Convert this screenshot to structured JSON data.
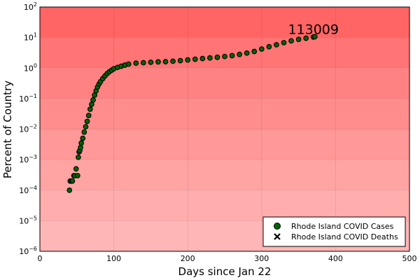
{
  "chart_data": {
    "type": "scatter",
    "title": "",
    "xlabel": "Days since Jan 22",
    "ylabel": "Percent of Country",
    "xlim": [
      0,
      500
    ],
    "ylim_exponent": [
      -6,
      2
    ],
    "yscale": "log10",
    "x_ticks": [
      0,
      100,
      200,
      300,
      400,
      500
    ],
    "y_ticks": [
      "-6",
      "-5",
      "-4",
      "-3",
      "-2",
      "-1",
      "0",
      "1",
      "2"
    ],
    "grid": true,
    "legend_position": "bottom-right",
    "background_colors": [
      "#ffb6b6",
      "#ffadad",
      "#ffa3a3",
      "#ff9898",
      "#ff8d8d",
      "#ff8282",
      "#ff7474",
      "#ff6565"
    ],
    "annotation": {
      "text": "113009",
      "x": 370,
      "y": 19
    },
    "series": [
      {
        "name": "Rhode Island COVID Cases",
        "marker": "circle",
        "color": "#006400",
        "x": [
          40,
          41,
          43,
          44,
          46,
          47,
          49,
          51,
          52,
          53,
          54,
          55,
          56,
          58,
          60,
          62,
          64,
          66,
          68,
          70,
          72,
          74,
          76,
          78,
          80,
          82,
          85,
          88,
          91,
          94,
          97,
          100,
          105,
          110,
          115,
          120,
          130,
          140,
          150,
          160,
          170,
          180,
          190,
          200,
          210,
          220,
          230,
          240,
          250,
          260,
          270,
          280,
          290,
          300,
          310,
          320,
          330,
          340,
          350,
          360,
          370,
          372
        ],
        "y": [
          0.0001,
          0.0002,
          0.0002,
          0.0002,
          0.0003,
          0.0003,
          0.0005,
          0.0003,
          0.0012,
          0.0018,
          0.002,
          0.0025,
          0.0035,
          0.005,
          0.008,
          0.012,
          0.018,
          0.028,
          0.045,
          0.065,
          0.09,
          0.13,
          0.18,
          0.24,
          0.3,
          0.36,
          0.45,
          0.55,
          0.66,
          0.76,
          0.85,
          0.95,
          1.05,
          1.15,
          1.25,
          1.35,
          1.45,
          1.5,
          1.55,
          1.6,
          1.62,
          1.68,
          1.75,
          1.85,
          1.95,
          2.05,
          2.15,
          2.25,
          2.4,
          2.55,
          2.8,
          3.1,
          3.5,
          4.2,
          5.0,
          5.8,
          6.8,
          7.8,
          8.7,
          9.5,
          10.4,
          10.7
        ]
      },
      {
        "name": "Rhode Island COVID Deaths",
        "marker": "x",
        "color": "#000000",
        "x": [],
        "y": []
      }
    ]
  }
}
